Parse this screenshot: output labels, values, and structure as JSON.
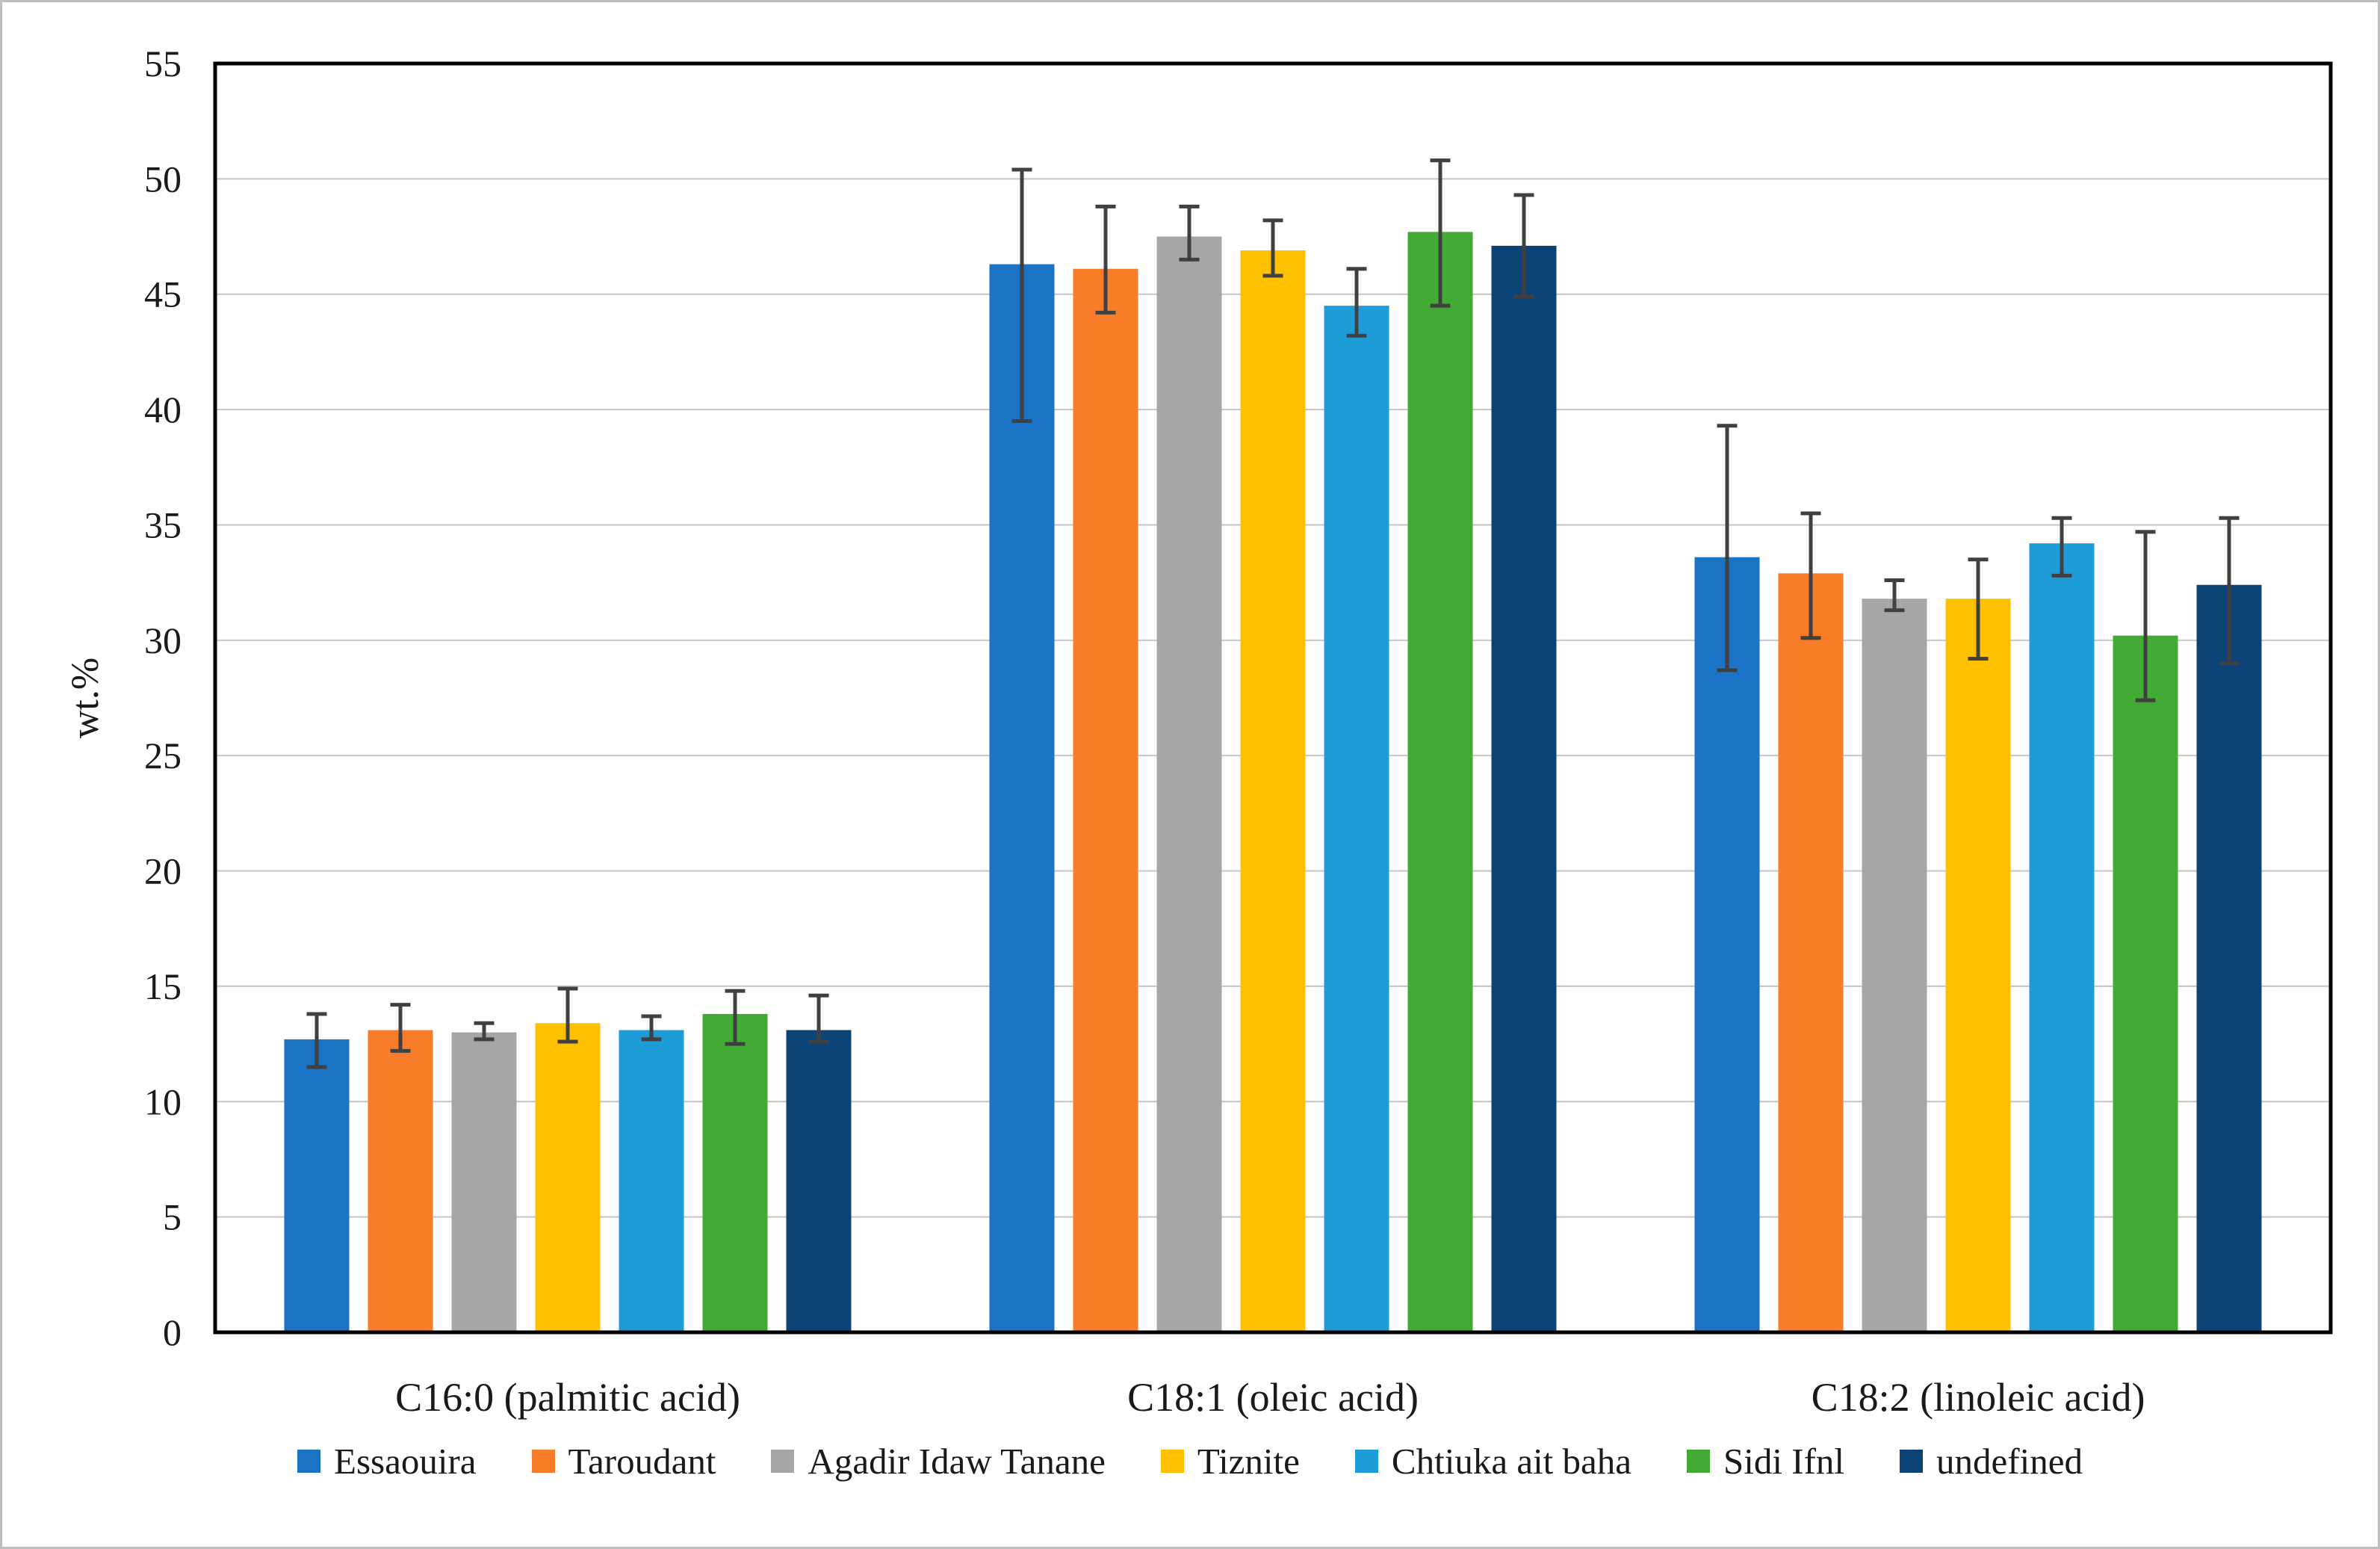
{
  "figure": {
    "background": "#ffffff",
    "border_color": "#bebebe",
    "plot_frame_color": "#000000",
    "gridline_color": "#c6c6c6",
    "error_bar_color": "#404040",
    "text_color": "#1a1a1a"
  },
  "chart_data": {
    "type": "bar",
    "title": "",
    "xlabel": "",
    "ylabel": "wt.%",
    "ylim": [
      0,
      55
    ],
    "ytick_step": 5,
    "grid": true,
    "legend_position": "bottom",
    "categories": [
      "C16:0 (palmitic acid)",
      "C18:1 (oleic acid)",
      "C18:2 (linoleic acid)"
    ],
    "series": [
      {
        "name": "Essaouira",
        "color": "#1b73c5",
        "values": [
          12.7,
          46.3,
          33.6
        ],
        "err_hi": [
          13.8,
          50.4,
          39.3
        ],
        "err_lo": [
          11.5,
          39.5,
          28.7
        ]
      },
      {
        "name": "Taroudant",
        "color": "#f97c28",
        "values": [
          13.1,
          46.1,
          32.9
        ],
        "err_hi": [
          14.2,
          48.8,
          35.5
        ],
        "err_lo": [
          12.2,
          44.2,
          30.1
        ]
      },
      {
        "name": "Agadir Idaw Tanane",
        "color": "#a6a6a6",
        "values": [
          13.0,
          47.5,
          31.8
        ],
        "err_hi": [
          13.4,
          48.8,
          32.6
        ],
        "err_lo": [
          12.7,
          46.5,
          31.3
        ]
      },
      {
        "name": "Tiznite",
        "color": "#ffc000",
        "values": [
          13.4,
          46.9,
          31.8
        ],
        "err_hi": [
          14.9,
          48.2,
          33.5
        ],
        "err_lo": [
          12.6,
          45.8,
          29.2
        ]
      },
      {
        "name": "Chtiuka ait baha",
        "color": "#1e9cd8",
        "values": [
          13.1,
          44.5,
          34.2
        ],
        "err_hi": [
          13.7,
          46.1,
          35.3
        ],
        "err_lo": [
          12.7,
          43.2,
          32.8
        ]
      },
      {
        "name": "Sidi Ifnl",
        "color": "#43ab35",
        "values": [
          13.8,
          47.7,
          30.2
        ],
        "err_hi": [
          14.8,
          50.8,
          34.7
        ],
        "err_lo": [
          12.5,
          44.5,
          27.4
        ]
      },
      {
        "name": "undefined",
        "color": "#0c4377",
        "values": [
          13.1,
          47.1,
          32.4
        ],
        "err_hi": [
          14.6,
          49.3,
          35.3
        ],
        "err_lo": [
          12.6,
          44.9,
          29.0
        ]
      }
    ]
  }
}
